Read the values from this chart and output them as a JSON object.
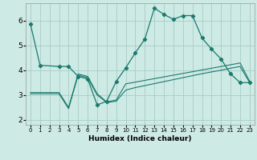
{
  "xlabel": "Humidex (Indice chaleur)",
  "bg_color": "#ceeae4",
  "grid_color": "#a8ccc8",
  "line_color": "#1a7a6e",
  "xlim": [
    -0.5,
    23.5
  ],
  "ylim": [
    1.8,
    6.7
  ],
  "yticks": [
    2,
    3,
    4,
    5,
    6
  ],
  "xticks": [
    0,
    1,
    2,
    3,
    4,
    5,
    6,
    7,
    8,
    9,
    10,
    11,
    12,
    13,
    14,
    15,
    16,
    17,
    18,
    19,
    20,
    21,
    22,
    23
  ],
  "series1_x": [
    0,
    1,
    3,
    4,
    5,
    6,
    7,
    8,
    9,
    10,
    11,
    12,
    13,
    14,
    15,
    16,
    17,
    18,
    19,
    20,
    21,
    22,
    23
  ],
  "series1_y": [
    5.85,
    4.2,
    4.15,
    4.15,
    3.75,
    3.65,
    2.6,
    2.75,
    3.55,
    4.1,
    4.7,
    5.25,
    6.5,
    6.25,
    6.05,
    6.2,
    6.2,
    5.3,
    4.85,
    4.45,
    3.85,
    3.5,
    3.5
  ],
  "series2_x": [
    0,
    3,
    4,
    5,
    6,
    7,
    8,
    9,
    10,
    11,
    12,
    13,
    14,
    15,
    16,
    17,
    18,
    19,
    20,
    21,
    22,
    23
  ],
  "series2_y": [
    3.05,
    3.05,
    2.45,
    3.8,
    3.7,
    3.0,
    2.7,
    2.75,
    3.2,
    3.3,
    3.38,
    3.46,
    3.54,
    3.62,
    3.7,
    3.78,
    3.86,
    3.93,
    4.0,
    4.08,
    4.15,
    3.5
  ],
  "series3_x": [
    0,
    3,
    4,
    5,
    6,
    7,
    8,
    9,
    10,
    11,
    12,
    13,
    14,
    15,
    16,
    17,
    18,
    19,
    20,
    21,
    22,
    23
  ],
  "series3_y": [
    3.1,
    3.1,
    2.5,
    3.85,
    3.75,
    3.05,
    2.72,
    2.8,
    3.45,
    3.52,
    3.59,
    3.66,
    3.73,
    3.8,
    3.87,
    3.94,
    4.01,
    4.08,
    4.15,
    4.22,
    4.29,
    3.55
  ]
}
